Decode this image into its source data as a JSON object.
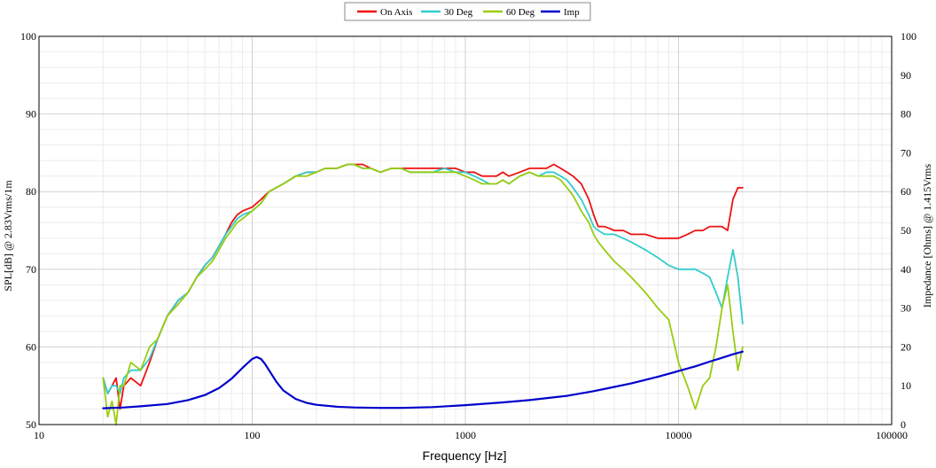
{
  "chart_data": {
    "type": "line",
    "xlabel": "Frequency [Hz]",
    "ylabel": "SPL[dB] @ 2.83Vrms/1m",
    "y2label": "Impedance [Ohms] @ 1.415Vrms",
    "x_scale": "log",
    "xlim": [
      10,
      100000
    ],
    "ylim": [
      50,
      100
    ],
    "y2lim": [
      0,
      100
    ],
    "x_ticks": [
      10,
      100,
      1000,
      10000,
      100000
    ],
    "x_tick_labels": [
      "10",
      "100",
      "1000",
      "10000",
      "100000"
    ],
    "y_ticks": [
      50,
      60,
      70,
      80,
      90,
      100
    ],
    "y_tick_labels": [
      "50",
      "60",
      "70",
      "80",
      "90",
      "100"
    ],
    "y2_ticks": [
      0,
      10,
      20,
      30,
      40,
      50,
      60,
      70,
      80,
      90,
      100
    ],
    "y2_tick_labels": [
      "0",
      "10",
      "20",
      "30",
      "40",
      "50",
      "60",
      "70",
      "80",
      "90",
      "100"
    ],
    "grid": true,
    "legend_position": "top-center",
    "series": [
      {
        "name": "On Axis",
        "color": "#ee1111",
        "axis": "left",
        "x": [
          20,
          21,
          22,
          23,
          24,
          25,
          27,
          30,
          33,
          36,
          40,
          45,
          50,
          55,
          60,
          65,
          70,
          75,
          80,
          85,
          90,
          100,
          110,
          120,
          140,
          160,
          180,
          200,
          220,
          250,
          280,
          300,
          330,
          360,
          400,
          450,
          500,
          550,
          600,
          700,
          800,
          900,
          1000,
          1100,
          1200,
          1300,
          1400,
          1500,
          1600,
          1800,
          2000,
          2200,
          2400,
          2600,
          2800,
          3000,
          3200,
          3500,
          3800,
          4000,
          4200,
          4500,
          5000,
          5500,
          6000,
          7000,
          8000,
          9000,
          10000,
          11000,
          12000,
          13000,
          14000,
          15000,
          16000,
          17000,
          18000,
          19000,
          20000
        ],
        "values": [
          56,
          54,
          55,
          56,
          52,
          55,
          56,
          55,
          58,
          61,
          64,
          66,
          67,
          69,
          70.5,
          71.5,
          73,
          74.5,
          76,
          77,
          77.5,
          78,
          79,
          80,
          81,
          82,
          82.5,
          82.5,
          83,
          83,
          83.5,
          83.5,
          83.5,
          83,
          82.5,
          83,
          83,
          83,
          83,
          83,
          83,
          83,
          82.5,
          82.5,
          82,
          82,
          82,
          82.5,
          82,
          82.5,
          83,
          83,
          83,
          83.5,
          83,
          82.5,
          82,
          81,
          79,
          77,
          75.5,
          75.5,
          75,
          75,
          74.5,
          74.5,
          74,
          74,
          74,
          74.5,
          75,
          75,
          75.5,
          75.5,
          75.5,
          75,
          79,
          80.5,
          80.5
        ]
      },
      {
        "name": "30 Deg",
        "color": "#33cccc",
        "axis": "left",
        "x": [
          20,
          21,
          22,
          23,
          24,
          25,
          27,
          30,
          33,
          36,
          40,
          45,
          50,
          55,
          60,
          65,
          70,
          75,
          80,
          85,
          90,
          100,
          110,
          120,
          140,
          160,
          180,
          200,
          220,
          250,
          280,
          300,
          330,
          360,
          400,
          450,
          500,
          550,
          600,
          700,
          800,
          900,
          1000,
          1100,
          1200,
          1300,
          1400,
          1500,
          1600,
          1800,
          2000,
          2200,
          2400,
          2600,
          2800,
          3000,
          3200,
          3500,
          3800,
          4000,
          4200,
          4500,
          5000,
          5500,
          6000,
          7000,
          8000,
          9000,
          10000,
          11000,
          12000,
          13000,
          14000,
          15000,
          16000,
          17000,
          18000,
          19000,
          20000
        ],
        "values": [
          56,
          54,
          55,
          55,
          54,
          56,
          57,
          57,
          58.5,
          61,
          64,
          66,
          67,
          69,
          70.5,
          71.5,
          73,
          74.5,
          75.5,
          76.5,
          77,
          77.5,
          78.5,
          80,
          81,
          82,
          82.5,
          82.5,
          83,
          83,
          83.5,
          83.5,
          83,
          83,
          82.5,
          83,
          83,
          82.5,
          82.5,
          82.5,
          83,
          82.5,
          82.5,
          82,
          81.5,
          81,
          81,
          81.5,
          81,
          82,
          82.5,
          82,
          82.5,
          82.5,
          82,
          81.5,
          80.5,
          79,
          77,
          75.5,
          75,
          74.5,
          74.5,
          74,
          73.5,
          72.5,
          71.5,
          70.5,
          70,
          70,
          70,
          69.5,
          69,
          67,
          65,
          69,
          72.5,
          69,
          63
        ]
      },
      {
        "name": "60 Deg",
        "color": "#99cc11",
        "axis": "left",
        "x": [
          20,
          21,
          22,
          23,
          24,
          25,
          27,
          30,
          33,
          36,
          40,
          45,
          50,
          55,
          60,
          65,
          70,
          75,
          80,
          85,
          90,
          100,
          110,
          120,
          140,
          160,
          180,
          200,
          220,
          250,
          280,
          300,
          330,
          360,
          400,
          450,
          500,
          550,
          600,
          700,
          800,
          900,
          1000,
          1100,
          1200,
          1300,
          1400,
          1500,
          1600,
          1800,
          2000,
          2200,
          2400,
          2600,
          2800,
          3000,
          3200,
          3500,
          3800,
          4000,
          4200,
          4500,
          5000,
          5500,
          6000,
          7000,
          8000,
          9000,
          10000,
          11000,
          12000,
          13000,
          14000,
          15000,
          16000,
          17000,
          18000,
          19000,
          20000
        ],
        "values": [
          56,
          51,
          53,
          50,
          55,
          55,
          58,
          57,
          60,
          61,
          64,
          65.5,
          67,
          69,
          70,
          71,
          72.5,
          74,
          75,
          76,
          76.5,
          77.5,
          78.5,
          80,
          81,
          82,
          82,
          82.5,
          83,
          83,
          83.5,
          83.5,
          83,
          83,
          82.5,
          83,
          83,
          82.5,
          82.5,
          82.5,
          82.5,
          82.5,
          82,
          81.5,
          81,
          81,
          81,
          81.5,
          81,
          82,
          82.5,
          82,
          82,
          82,
          81.5,
          80.5,
          79.5,
          77.5,
          76,
          74.5,
          73.5,
          72.5,
          71,
          70,
          69,
          67,
          65,
          63.5,
          58,
          55,
          52,
          55,
          56,
          60,
          65,
          68,
          62,
          57,
          60
        ]
      },
      {
        "name": "Imp",
        "color": "#0000cc",
        "axis": "right",
        "x": [
          20,
          25,
          30,
          40,
          50,
          60,
          70,
          80,
          90,
          100,
          105,
          110,
          115,
          120,
          130,
          140,
          160,
          180,
          200,
          250,
          300,
          400,
          500,
          700,
          1000,
          1500,
          2000,
          3000,
          4000,
          5000,
          6000,
          7000,
          8000,
          10000,
          12000,
          14000,
          16000,
          18000,
          20000
        ],
        "values": [
          4.2,
          4.4,
          4.7,
          5.3,
          6.3,
          7.6,
          9.4,
          11.8,
          14.6,
          16.9,
          17.4,
          16.9,
          15.6,
          14,
          11,
          8.8,
          6.6,
          5.6,
          5.1,
          4.6,
          4.4,
          4.3,
          4.3,
          4.5,
          5,
          5.7,
          6.3,
          7.4,
          8.6,
          9.7,
          10.6,
          11.5,
          12.3,
          13.8,
          15,
          16.2,
          17.2,
          18.1,
          18.8
        ]
      }
    ]
  }
}
